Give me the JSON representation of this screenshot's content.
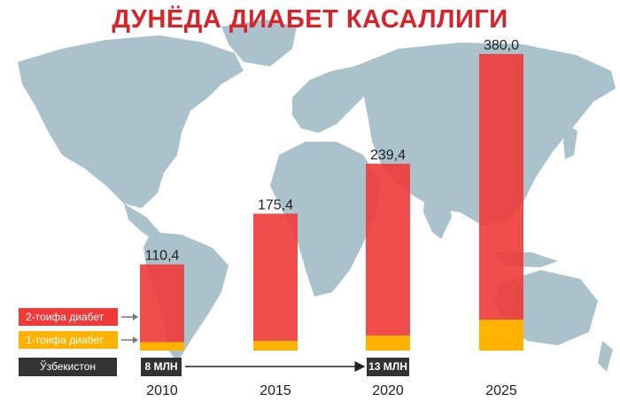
{
  "title": "ДУНЁДА ДИАБЕТ КАСАЛЛИГИ",
  "colors": {
    "type2": "#f03a3a",
    "type1": "#ffb300",
    "title": "#d8232a",
    "map": "#a9c2cc",
    "dark": "#333333"
  },
  "legend": {
    "type2": "2-тоифа диабет",
    "type1": "1-тоифа диабет"
  },
  "uzbekistan": {
    "label": "Ўзбекистон",
    "start": "8 МЛН",
    "end": "13 МЛН"
  },
  "chart_data": {
    "type": "bar",
    "stacked": true,
    "categories": [
      "2010",
      "2015",
      "2020",
      "2025"
    ],
    "totals": [
      110.4,
      175.4,
      239.4,
      380.0
    ],
    "total_labels": [
      "110,4",
      "175,4",
      "239,4",
      "380,0"
    ],
    "series": [
      {
        "name": "2-тоифа диабет",
        "values": [
          99.6,
          163.2,
          220.4,
          340.3
        ]
      },
      {
        "name": "1-тоифа диабет",
        "values": [
          10.8,
          12.2,
          19.0,
          39.7
        ]
      }
    ],
    "ylim": [
      0,
      380
    ],
    "uzbekistan_markers": {
      "2010": "8 МЛН",
      "2020": "13 МЛН"
    }
  }
}
